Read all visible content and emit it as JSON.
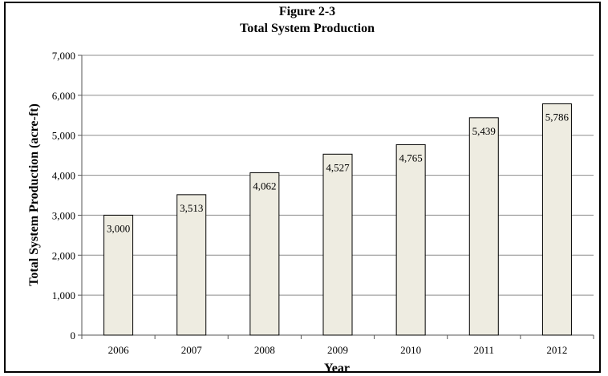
{
  "chart_data": {
    "type": "bar",
    "title": "Figure 2-3",
    "subtitle": "Total System Production",
    "xlabel": "Year",
    "ylabel": "Total System Production (acre-ft)",
    "categories": [
      "2006",
      "2007",
      "2008",
      "2009",
      "2010",
      "2011",
      "2012"
    ],
    "values": [
      3000,
      3513,
      4062,
      4527,
      4765,
      5439,
      5786
    ],
    "value_labels": [
      "3,000",
      "3,513",
      "4,062",
      "4,527",
      "4,765",
      "5,439",
      "5,786"
    ],
    "ylim": [
      0,
      7000
    ],
    "yticks": [
      0,
      1000,
      2000,
      3000,
      4000,
      5000,
      6000,
      7000
    ],
    "ytick_labels": [
      "0",
      "1,000",
      "2,000",
      "3,000",
      "4,000",
      "5,000",
      "6,000",
      "7,000"
    ],
    "grid": true,
    "legend": "none",
    "colors": {
      "bar_fill": "#eeece1",
      "bar_stroke": "#000000",
      "grid": "#8c8c8c"
    }
  }
}
